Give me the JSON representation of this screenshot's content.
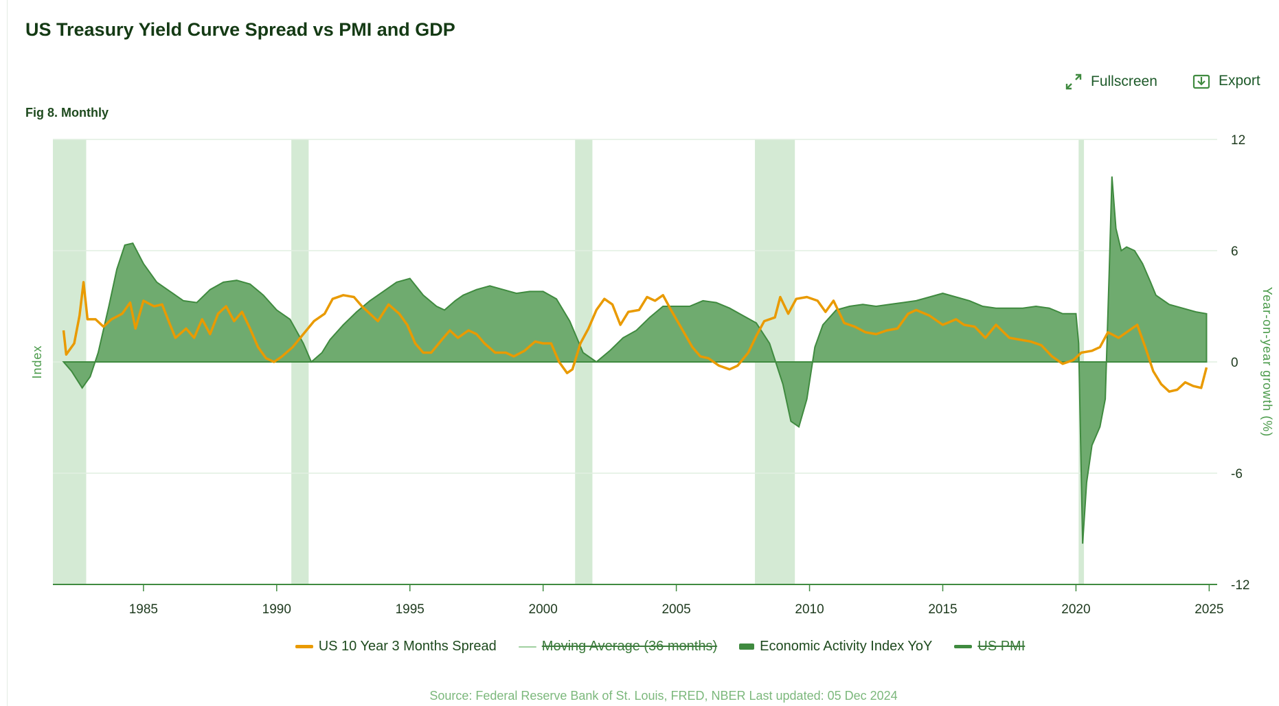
{
  "header": {
    "title": "US Treasury Yield Curve Spread vs PMI and GDP",
    "subtitle": "Fig 8. Monthly",
    "fullscreen_label": "Fullscreen",
    "export_label": "Export",
    "fullscreen_icon": "expand-arrows-icon",
    "export_icon": "download-tray-icon"
  },
  "footer": {
    "source": "Source: Federal Reserve Bank of St. Louis, FRED, NBER Last updated: 05 Dec 2024"
  },
  "chart_data": {
    "type": "area",
    "title": "US Treasury Yield Curve Spread vs PMI and GDP",
    "ylabel_left": "Index",
    "ylabel_right": "Year-on-year growth (%)",
    "xlim": [
      1981.6,
      2025.3
    ],
    "ylim": [
      -12,
      12
    ],
    "yticks": [
      "12",
      "6",
      "0",
      "-6",
      "-12"
    ],
    "xticks": [
      "1985",
      "1990",
      "1995",
      "2000",
      "2005",
      "2010",
      "2015",
      "2020",
      "2025"
    ],
    "grid": "horizontal",
    "legend_placement": "bottom",
    "colors": {
      "spread": "#e99a00",
      "activity_fill": "#6fab6f",
      "activity_line": "#3f8a3f",
      "recession": "#d4ead4",
      "ma": "#9fd09f",
      "pmi": "#3f8a3f"
    },
    "recessions": [
      [
        1981.6,
        1982.85
      ],
      [
        1990.55,
        1991.2
      ],
      [
        2001.2,
        2001.85
      ],
      [
        2007.95,
        2009.45
      ],
      [
        2020.1,
        2020.3
      ]
    ],
    "legend": [
      {
        "name": "US 10 Year 3 Months Spread",
        "hidden": false,
        "swatch": "line",
        "color": "#e99a00"
      },
      {
        "name": "Moving Average (36 months)",
        "hidden": true,
        "swatch": "thin",
        "color": "#9fd09f"
      },
      {
        "name": "Economic Activity Index YoY",
        "hidden": false,
        "swatch": "area",
        "color": "#3f8a3f"
      },
      {
        "name": "US PMI",
        "hidden": true,
        "swatch": "line",
        "color": "#3f8a3f"
      }
    ],
    "series": [
      {
        "name": "Economic Activity Index YoY",
        "points": [
          [
            1982.0,
            0
          ],
          [
            1982.3,
            -0.5
          ],
          [
            1982.7,
            -1.4
          ],
          [
            1983.0,
            -0.8
          ],
          [
            1983.3,
            0.5
          ],
          [
            1983.7,
            3
          ],
          [
            1984.0,
            5
          ],
          [
            1984.3,
            6.3
          ],
          [
            1984.6,
            6.4
          ],
          [
            1985.0,
            5.3
          ],
          [
            1985.5,
            4.3
          ],
          [
            1986.0,
            3.8
          ],
          [
            1986.5,
            3.3
          ],
          [
            1987.0,
            3.2
          ],
          [
            1987.5,
            3.9
          ],
          [
            1988.0,
            4.3
          ],
          [
            1988.5,
            4.4
          ],
          [
            1989.0,
            4.2
          ],
          [
            1989.5,
            3.6
          ],
          [
            1990.0,
            2.8
          ],
          [
            1990.5,
            2.3
          ],
          [
            1991.0,
            1.0
          ],
          [
            1991.3,
            0.0
          ],
          [
            1991.7,
            0.5
          ],
          [
            1992.0,
            1.2
          ],
          [
            1992.5,
            2.0
          ],
          [
            1993.0,
            2.7
          ],
          [
            1993.5,
            3.3
          ],
          [
            1994.0,
            3.8
          ],
          [
            1994.5,
            4.3
          ],
          [
            1995.0,
            4.5
          ],
          [
            1995.5,
            3.6
          ],
          [
            1996.0,
            3.0
          ],
          [
            1996.3,
            2.8
          ],
          [
            1996.7,
            3.3
          ],
          [
            1997.0,
            3.6
          ],
          [
            1997.5,
            3.9
          ],
          [
            1998.0,
            4.1
          ],
          [
            1998.5,
            3.9
          ],
          [
            1999.0,
            3.7
          ],
          [
            1999.5,
            3.8
          ],
          [
            2000.0,
            3.8
          ],
          [
            2000.5,
            3.4
          ],
          [
            2001.0,
            2.2
          ],
          [
            2001.5,
            0.5
          ],
          [
            2002.0,
            0.0
          ],
          [
            2002.5,
            0.6
          ],
          [
            2003.0,
            1.3
          ],
          [
            2003.5,
            1.7
          ],
          [
            2004.0,
            2.4
          ],
          [
            2004.5,
            3.0
          ],
          [
            2005.0,
            3.0
          ],
          [
            2005.5,
            3.0
          ],
          [
            2006.0,
            3.3
          ],
          [
            2006.5,
            3.2
          ],
          [
            2007.0,
            2.9
          ],
          [
            2007.5,
            2.5
          ],
          [
            2008.0,
            2.1
          ],
          [
            2008.5,
            1.0
          ],
          [
            2009.0,
            -1.2
          ],
          [
            2009.3,
            -3.2
          ],
          [
            2009.6,
            -3.5
          ],
          [
            2009.9,
            -2.0
          ],
          [
            2010.2,
            0.8
          ],
          [
            2010.5,
            2.0
          ],
          [
            2011.0,
            2.8
          ],
          [
            2011.5,
            3.0
          ],
          [
            2012.0,
            3.1
          ],
          [
            2012.5,
            3.0
          ],
          [
            2013.0,
            3.1
          ],
          [
            2013.5,
            3.2
          ],
          [
            2014.0,
            3.3
          ],
          [
            2014.5,
            3.5
          ],
          [
            2015.0,
            3.7
          ],
          [
            2015.5,
            3.5
          ],
          [
            2016.0,
            3.3
          ],
          [
            2016.5,
            3.0
          ],
          [
            2017.0,
            2.9
          ],
          [
            2017.5,
            2.9
          ],
          [
            2018.0,
            2.9
          ],
          [
            2018.5,
            3.0
          ],
          [
            2019.0,
            2.9
          ],
          [
            2019.5,
            2.6
          ],
          [
            2020.0,
            2.6
          ],
          [
            2020.1,
            1.0
          ],
          [
            2020.25,
            -9.8
          ],
          [
            2020.4,
            -6.5
          ],
          [
            2020.6,
            -4.5
          ],
          [
            2020.9,
            -3.5
          ],
          [
            2021.1,
            -2.0
          ],
          [
            2021.25,
            5.0
          ],
          [
            2021.35,
            10.0
          ],
          [
            2021.5,
            7.2
          ],
          [
            2021.7,
            6.0
          ],
          [
            2021.9,
            6.2
          ],
          [
            2022.2,
            6.0
          ],
          [
            2022.5,
            5.3
          ],
          [
            2022.8,
            4.3
          ],
          [
            2023.0,
            3.6
          ],
          [
            2023.5,
            3.1
          ],
          [
            2024.0,
            2.9
          ],
          [
            2024.5,
            2.7
          ],
          [
            2024.9,
            2.6
          ]
        ]
      },
      {
        "name": "US 10 Year 3 Months Spread",
        "points": [
          [
            1982.0,
            1.7
          ],
          [
            1982.1,
            0.4
          ],
          [
            1982.4,
            1.0
          ],
          [
            1982.6,
            2.5
          ],
          [
            1982.75,
            4.3
          ],
          [
            1982.9,
            2.3
          ],
          [
            1983.2,
            2.3
          ],
          [
            1983.5,
            1.9
          ],
          [
            1983.8,
            2.3
          ],
          [
            1984.2,
            2.6
          ],
          [
            1984.5,
            3.2
          ],
          [
            1984.7,
            1.8
          ],
          [
            1985.0,
            3.3
          ],
          [
            1985.4,
            3.0
          ],
          [
            1985.7,
            3.1
          ],
          [
            1986.0,
            2.0
          ],
          [
            1986.2,
            1.3
          ],
          [
            1986.6,
            1.8
          ],
          [
            1986.9,
            1.3
          ],
          [
            1987.2,
            2.3
          ],
          [
            1987.5,
            1.5
          ],
          [
            1987.8,
            2.6
          ],
          [
            1988.1,
            3.0
          ],
          [
            1988.4,
            2.2
          ],
          [
            1988.7,
            2.7
          ],
          [
            1989.0,
            1.8
          ],
          [
            1989.3,
            0.8
          ],
          [
            1989.6,
            0.2
          ],
          [
            1989.9,
            0.0
          ],
          [
            1990.2,
            0.3
          ],
          [
            1990.6,
            0.8
          ],
          [
            1991.0,
            1.5
          ],
          [
            1991.4,
            2.2
          ],
          [
            1991.8,
            2.6
          ],
          [
            1992.1,
            3.4
          ],
          [
            1992.5,
            3.6
          ],
          [
            1992.9,
            3.5
          ],
          [
            1993.2,
            3.0
          ],
          [
            1993.5,
            2.6
          ],
          [
            1993.8,
            2.2
          ],
          [
            1994.2,
            3.1
          ],
          [
            1994.6,
            2.6
          ],
          [
            1994.9,
            2.0
          ],
          [
            1995.2,
            1.0
          ],
          [
            1995.5,
            0.5
          ],
          [
            1995.8,
            0.5
          ],
          [
            1996.2,
            1.2
          ],
          [
            1996.5,
            1.7
          ],
          [
            1996.8,
            1.3
          ],
          [
            1997.2,
            1.7
          ],
          [
            1997.5,
            1.5
          ],
          [
            1997.8,
            1.0
          ],
          [
            1998.2,
            0.5
          ],
          [
            1998.6,
            0.5
          ],
          [
            1998.9,
            0.3
          ],
          [
            1999.3,
            0.6
          ],
          [
            1999.7,
            1.1
          ],
          [
            2000.0,
            1.0
          ],
          [
            2000.3,
            1.0
          ],
          [
            2000.6,
            0.0
          ],
          [
            2000.9,
            -0.6
          ],
          [
            2001.1,
            -0.4
          ],
          [
            2001.4,
            1.0
          ],
          [
            2001.7,
            1.8
          ],
          [
            2002.0,
            2.8
          ],
          [
            2002.3,
            3.4
          ],
          [
            2002.6,
            3.1
          ],
          [
            2002.9,
            2.0
          ],
          [
            2003.2,
            2.7
          ],
          [
            2003.6,
            2.8
          ],
          [
            2003.9,
            3.5
          ],
          [
            2004.2,
            3.3
          ],
          [
            2004.5,
            3.6
          ],
          [
            2004.8,
            2.8
          ],
          [
            2005.2,
            1.8
          ],
          [
            2005.6,
            0.8
          ],
          [
            2005.9,
            0.3
          ],
          [
            2006.2,
            0.2
          ],
          [
            2006.6,
            -0.2
          ],
          [
            2007.0,
            -0.4
          ],
          [
            2007.3,
            -0.2
          ],
          [
            2007.7,
            0.5
          ],
          [
            2008.0,
            1.4
          ],
          [
            2008.3,
            2.2
          ],
          [
            2008.7,
            2.4
          ],
          [
            2008.9,
            3.5
          ],
          [
            2009.2,
            2.6
          ],
          [
            2009.5,
            3.4
          ],
          [
            2009.9,
            3.5
          ],
          [
            2010.3,
            3.3
          ],
          [
            2010.6,
            2.7
          ],
          [
            2010.9,
            3.3
          ],
          [
            2011.3,
            2.1
          ],
          [
            2011.7,
            1.9
          ],
          [
            2012.1,
            1.6
          ],
          [
            2012.5,
            1.5
          ],
          [
            2012.9,
            1.7
          ],
          [
            2013.3,
            1.8
          ],
          [
            2013.7,
            2.6
          ],
          [
            2014.0,
            2.8
          ],
          [
            2014.5,
            2.5
          ],
          [
            2015.0,
            2.0
          ],
          [
            2015.5,
            2.3
          ],
          [
            2015.8,
            2.0
          ],
          [
            2016.2,
            1.9
          ],
          [
            2016.6,
            1.3
          ],
          [
            2017.0,
            2.0
          ],
          [
            2017.5,
            1.3
          ],
          [
            2017.9,
            1.2
          ],
          [
            2018.3,
            1.1
          ],
          [
            2018.7,
            0.9
          ],
          [
            2019.1,
            0.3
          ],
          [
            2019.5,
            -0.1
          ],
          [
            2019.9,
            0.1
          ],
          [
            2020.2,
            0.5
          ],
          [
            2020.6,
            0.6
          ],
          [
            2020.9,
            0.8
          ],
          [
            2021.2,
            1.6
          ],
          [
            2021.6,
            1.3
          ],
          [
            2021.9,
            1.6
          ],
          [
            2022.3,
            2.0
          ],
          [
            2022.6,
            0.8
          ],
          [
            2022.9,
            -0.5
          ],
          [
            2023.2,
            -1.2
          ],
          [
            2023.5,
            -1.6
          ],
          [
            2023.8,
            -1.5
          ],
          [
            2024.1,
            -1.1
          ],
          [
            2024.4,
            -1.3
          ],
          [
            2024.7,
            -1.4
          ],
          [
            2024.9,
            -0.3
          ]
        ]
      }
    ]
  }
}
